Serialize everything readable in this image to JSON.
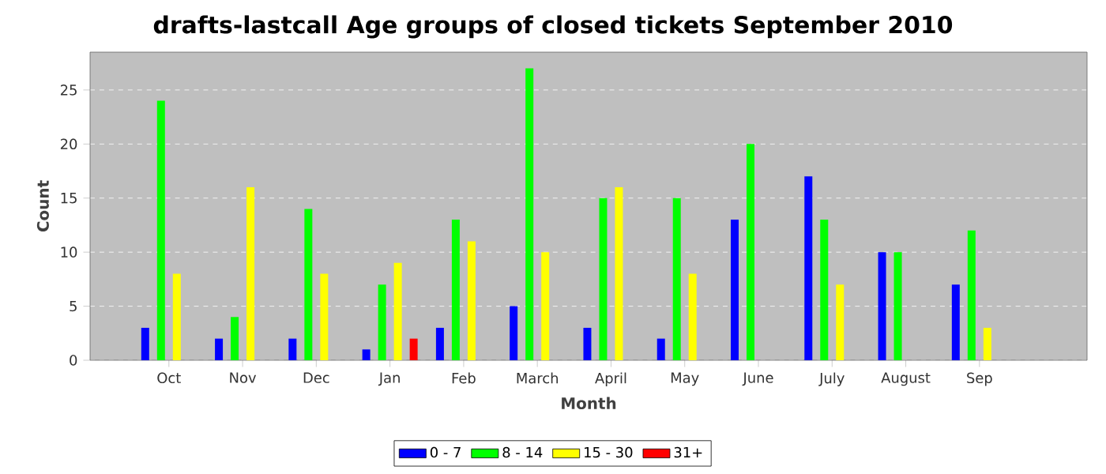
{
  "chart_data": {
    "type": "bar",
    "title": "drafts-lastcall Age groups of closed tickets September 2010",
    "xlabel": "Month",
    "ylabel": "Count",
    "categories": [
      "Oct",
      "Nov",
      "Dec",
      "Jan",
      "Feb",
      "March",
      "April",
      "May",
      "June",
      "July",
      "August",
      "Sep"
    ],
    "series": [
      {
        "name": "0 - 7",
        "color": "#0000ff",
        "values": [
          3,
          2,
          2,
          1,
          3,
          5,
          3,
          2,
          13,
          17,
          10,
          7
        ]
      },
      {
        "name": "8 - 14",
        "color": "#00ff00",
        "values": [
          24,
          4,
          14,
          7,
          13,
          27,
          15,
          15,
          20,
          13,
          10,
          12
        ]
      },
      {
        "name": "15 - 30",
        "color": "#ffff00",
        "values": [
          8,
          16,
          8,
          9,
          11,
          10,
          16,
          8,
          0,
          7,
          0,
          3
        ]
      },
      {
        "name": "31+",
        "color": "#ff0000",
        "values": [
          0,
          0,
          0,
          2,
          0,
          0,
          0,
          0,
          0,
          0,
          0,
          0
        ]
      }
    ],
    "ylim": [
      0,
      28.5
    ],
    "yticks": [
      0,
      5,
      10,
      15,
      20,
      25
    ],
    "grid": "y",
    "legend": "bottom"
  }
}
